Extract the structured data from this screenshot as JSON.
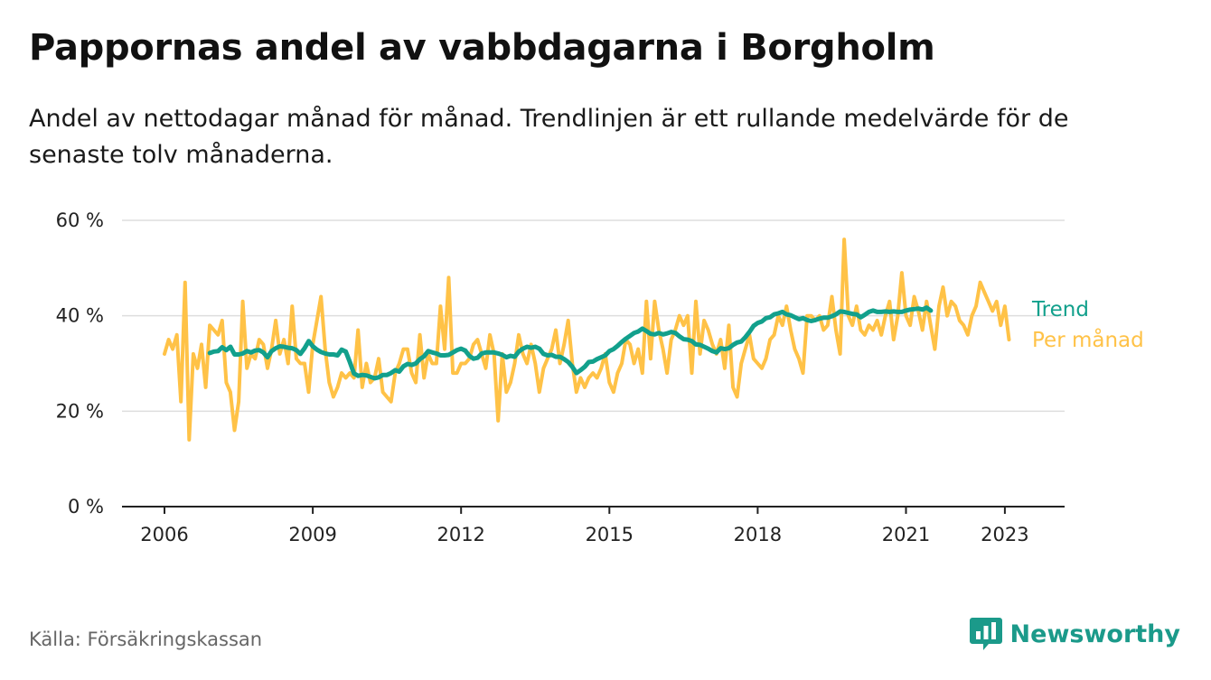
{
  "title": "Pappornas andel av vabbdagarna i Borgholm",
  "subtitle": "Andel av nettodagar månad för månad. Trendlinjen är ett rullande medelvärde för de senaste tolv månaderna.",
  "source": "Källa: Försäkringskassan",
  "brand": {
    "name": "Newsworthy",
    "icon": "newsworthy-logo-icon"
  },
  "colors": {
    "trend": "#12a08c",
    "monthly": "#ffc247",
    "grid": "#dddddd",
    "axis": "#222222"
  },
  "chart_data": {
    "type": "line",
    "ylim": [
      0,
      60
    ],
    "y_ticks": [
      0,
      20,
      40,
      60
    ],
    "y_tick_labels": [
      "0 %",
      "20 %",
      "40 %",
      "60 %"
    ],
    "x_ticks": [
      2006,
      2009,
      2012,
      2015,
      2018,
      2021,
      2023
    ],
    "x_tick_labels": [
      "2006",
      "2009",
      "2012",
      "2015",
      "2018",
      "2021",
      "2023"
    ],
    "xlim": [
      2006,
      2023.33
    ],
    "grid": true,
    "legend": "inline-right",
    "series": [
      {
        "name": "Per månad",
        "color": "#ffc247",
        "x_start": 2006,
        "step_months": 1,
        "values": [
          32,
          35,
          33,
          36,
          22,
          47,
          14,
          32,
          29,
          34,
          25,
          38,
          37,
          36,
          39,
          26,
          24,
          16,
          22,
          43,
          29,
          32,
          31,
          35,
          34,
          29,
          33,
          39,
          32,
          35,
          30,
          42,
          31,
          30,
          30,
          24,
          34,
          39,
          44,
          33,
          26,
          23,
          25,
          28,
          27,
          28,
          27,
          37,
          25,
          30,
          26,
          27,
          31,
          24,
          23,
          22,
          28,
          30,
          33,
          33,
          28,
          26,
          36,
          27,
          32,
          30,
          30,
          42,
          33,
          48,
          28,
          28,
          30,
          30,
          31,
          34,
          35,
          32,
          29,
          36,
          32,
          18,
          32,
          24,
          26,
          30,
          36,
          32,
          30,
          34,
          30,
          24,
          29,
          31,
          33,
          37,
          30,
          34,
          39,
          30,
          24,
          27,
          25,
          27,
          28,
          27,
          29,
          32,
          26,
          24,
          28,
          30,
          35,
          34,
          30,
          33,
          28,
          43,
          31,
          43,
          37,
          33,
          28,
          35,
          37,
          40,
          38,
          40,
          28,
          43,
          32,
          39,
          37,
          34,
          32,
          35,
          29,
          38,
          25,
          23,
          30,
          33,
          36,
          31,
          30,
          29,
          31,
          35,
          36,
          40,
          38,
          42,
          37,
          33,
          31,
          28,
          40,
          40,
          39,
          40,
          37,
          38,
          44,
          37,
          32,
          56,
          40,
          38,
          42,
          37,
          36,
          38,
          37,
          39,
          36,
          40,
          43,
          35,
          40,
          49,
          40,
          38,
          44,
          41,
          37,
          43,
          38,
          33,
          42,
          46,
          40,
          43,
          42,
          39,
          38,
          36,
          40,
          42,
          47,
          45,
          43,
          41,
          43,
          38,
          42,
          35
        ]
      },
      {
        "name": "Trend",
        "color": "#12a08c",
        "x_start": 2006.917,
        "step_months": 1,
        "values": [
          32.2,
          32.5,
          32.6,
          33.4,
          32.8,
          33.5,
          31.9,
          31.9,
          32.1,
          32.6,
          32.3,
          32.7,
          32.8,
          32.3,
          31.3,
          32.6,
          33.2,
          33.6,
          33.5,
          33.3,
          33.2,
          32.8,
          32.0,
          33.2,
          34.7,
          33.6,
          32.9,
          32.4,
          32.1,
          31.9,
          31.9,
          31.7,
          32.9,
          32.5,
          30.3,
          27.9,
          27.4,
          27.6,
          27.5,
          27.2,
          26.9,
          27.1,
          27.6,
          27.6,
          28.0,
          28.6,
          28.3,
          29.4,
          29.9,
          29.7,
          30.0,
          30.9,
          31.5,
          32.6,
          32.3,
          32.1,
          31.7,
          31.7,
          31.8,
          32.3,
          32.8,
          33.1,
          32.7,
          31.6,
          31.0,
          31.2,
          32.1,
          32.3,
          32.3,
          32.3,
          32.1,
          31.8,
          31.3,
          31.6,
          31.4,
          32.5,
          33.1,
          33.5,
          33.3,
          33.5,
          33.1,
          32.0,
          31.7,
          31.8,
          31.4,
          31.4,
          30.9,
          30.3,
          29.3,
          28.0,
          28.6,
          29.3,
          30.3,
          30.4,
          30.9,
          31.3,
          31.7,
          32.6,
          33.0,
          33.7,
          34.5,
          35.2,
          35.8,
          36.4,
          36.7,
          37.3,
          36.8,
          36.2,
          36.1,
          36.4,
          36.1,
          36.3,
          36.6,
          36.4,
          35.7,
          35.1,
          35.0,
          34.7,
          34.0,
          33.9,
          33.5,
          33.1,
          32.6,
          32.3,
          33.2,
          33.0,
          33.2,
          33.9,
          34.4,
          34.6,
          35.5,
          36.6,
          37.9,
          38.5,
          38.8,
          39.5,
          39.7,
          40.3,
          40.5,
          40.8,
          40.3,
          40.1,
          39.7,
          39.3,
          39.5,
          39.1,
          38.9,
          39.1,
          39.4,
          39.6,
          39.6,
          39.9,
          40.3,
          40.9,
          40.8,
          40.6,
          40.4,
          40.3,
          39.7,
          40.2,
          40.8,
          41.1,
          40.8,
          40.8,
          40.9,
          40.8,
          40.9,
          40.8,
          40.8,
          41.1,
          41.3,
          41.4,
          41.5,
          41.3,
          41.7,
          41.1
        ]
      }
    ]
  }
}
